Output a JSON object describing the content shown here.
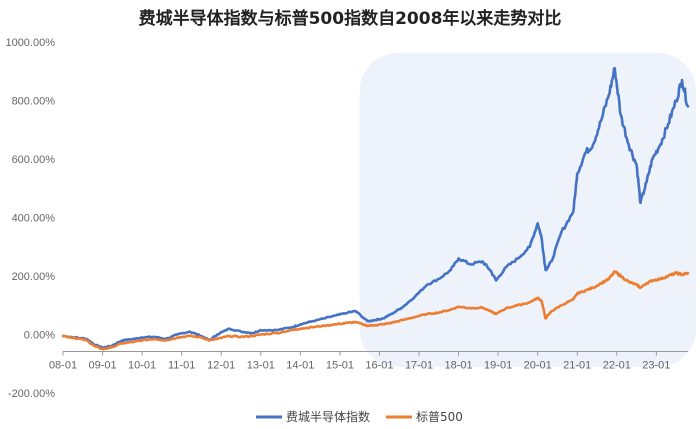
{
  "chart_data": {
    "type": "line",
    "title": "费城半导体指数与标普500指数自2008年以来走势对比",
    "ylim": [
      -200,
      1000
    ],
    "yticks": [
      "1000.00%",
      "800.00%",
      "600.00%",
      "400.00%",
      "200.00%",
      "0.00%",
      "-200.00%"
    ],
    "ytick_values": [
      1000,
      800,
      600,
      400,
      200,
      0,
      -200
    ],
    "xlim": [
      2008.0,
      2023.8
    ],
    "xticks": [
      "08-01",
      "09-01",
      "10-01",
      "11-01",
      "12-01",
      "13-01",
      "14-01",
      "15-01",
      "16-01",
      "17-01",
      "18-01",
      "19-01",
      "20-01",
      "21-01",
      "22-01",
      "23-01"
    ],
    "xtick_values": [
      2008,
      2009,
      2010,
      2011,
      2012,
      2013,
      2014,
      2015,
      2016,
      2017,
      2018,
      2019,
      2020,
      2021,
      2022,
      2023
    ],
    "highlight_range": [
      2015.5,
      2023.8
    ],
    "legend_position": "bottom",
    "series": [
      {
        "name": "费城半导体指数",
        "color": "#4472C4",
        "x": [
          2008.0,
          2008.3,
          2008.6,
          2008.8,
          2009.0,
          2009.2,
          2009.5,
          2009.8,
          2010.0,
          2010.3,
          2010.6,
          2010.9,
          2011.2,
          2011.5,
          2011.7,
          2011.9,
          2012.2,
          2012.5,
          2012.8,
          2013.0,
          2013.4,
          2013.8,
          2014.0,
          2014.3,
          2014.6,
          2014.9,
          2015.2,
          2015.4,
          2015.7,
          2015.9,
          2016.1,
          2016.3,
          2016.6,
          2016.9,
          2017.2,
          2017.5,
          2017.8,
          2018.0,
          2018.3,
          2018.6,
          2018.8,
          2018.95,
          2019.2,
          2019.5,
          2019.8,
          2020.0,
          2020.1,
          2020.2,
          2020.35,
          2020.6,
          2020.9,
          2021.0,
          2021.2,
          2021.4,
          2021.6,
          2021.8,
          2021.95,
          2022.1,
          2022.3,
          2022.5,
          2022.6,
          2022.75,
          2022.9,
          2023.1,
          2023.3,
          2023.5,
          2023.65,
          2023.8
        ],
        "values": [
          -5,
          -10,
          -15,
          -35,
          -45,
          -40,
          -20,
          -15,
          -10,
          -8,
          -15,
          0,
          10,
          -5,
          -20,
          0,
          20,
          10,
          5,
          15,
          15,
          25,
          35,
          45,
          55,
          65,
          75,
          80,
          45,
          50,
          55,
          70,
          95,
          130,
          170,
          190,
          220,
          260,
          240,
          250,
          220,
          185,
          230,
          260,
          300,
          380,
          330,
          220,
          250,
          350,
          420,
          550,
          620,
          650,
          730,
          820,
          910,
          750,
          650,
          580,
          450,
          520,
          600,
          650,
          720,
          800,
          870,
          780
        ]
      },
      {
        "name": "标普500",
        "color": "#ED7D31",
        "x": [
          2008.0,
          2008.3,
          2008.6,
          2008.8,
          2009.0,
          2009.2,
          2009.5,
          2009.8,
          2010.0,
          2010.3,
          2010.6,
          2010.9,
          2011.2,
          2011.5,
          2011.7,
          2011.9,
          2012.2,
          2012.5,
          2012.8,
          2013.0,
          2013.4,
          2013.8,
          2014.0,
          2014.3,
          2014.6,
          2014.9,
          2015.2,
          2015.4,
          2015.7,
          2015.9,
          2016.1,
          2016.3,
          2016.6,
          2016.9,
          2017.2,
          2017.5,
          2017.8,
          2018.0,
          2018.3,
          2018.6,
          2018.8,
          2018.95,
          2019.2,
          2019.5,
          2019.8,
          2020.0,
          2020.1,
          2020.2,
          2020.35,
          2020.6,
          2020.9,
          2021.0,
          2021.2,
          2021.4,
          2021.6,
          2021.8,
          2021.95,
          2022.1,
          2022.3,
          2022.5,
          2022.6,
          2022.75,
          2022.9,
          2023.1,
          2023.3,
          2023.5,
          2023.65,
          2023.8
        ],
        "values": [
          -5,
          -12,
          -20,
          -40,
          -50,
          -45,
          -30,
          -25,
          -20,
          -15,
          -20,
          -10,
          -5,
          -10,
          -20,
          -15,
          -5,
          -8,
          -5,
          0,
          5,
          15,
          20,
          25,
          30,
          35,
          40,
          42,
          30,
          32,
          35,
          40,
          50,
          60,
          70,
          75,
          85,
          95,
          90,
          92,
          80,
          70,
          90,
          100,
          110,
          125,
          115,
          55,
          80,
          100,
          120,
          140,
          150,
          160,
          175,
          190,
          215,
          200,
          180,
          170,
          160,
          175,
          185,
          190,
          200,
          210,
          205,
          210
        ]
      }
    ]
  }
}
